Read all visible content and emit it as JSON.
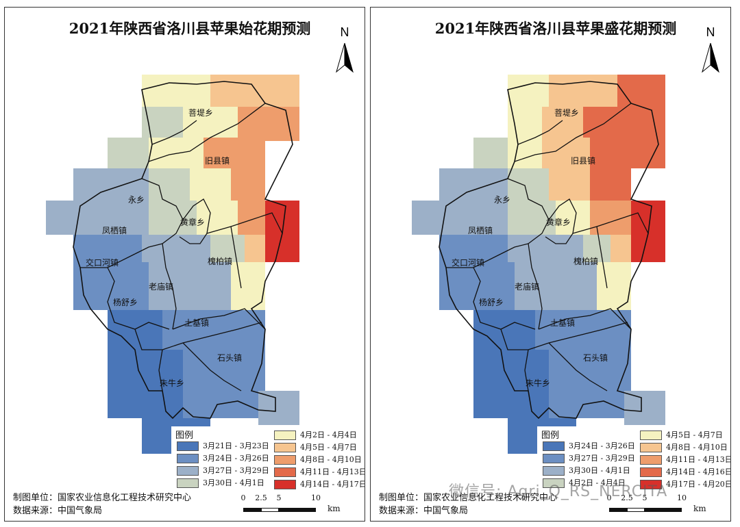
{
  "maps": [
    {
      "title": "2021年陕西省洛川县苹果始花期预测",
      "legend_title": "图例",
      "legend_items": [
        {
          "label": "3月21日 - 3月23日",
          "color": "#4a76b8"
        },
        {
          "label": "3月24日 - 3月26日",
          "color": "#6c8fc2"
        },
        {
          "label": "3月27日 - 3月29日",
          "color": "#9cb0c8"
        },
        {
          "label": "3月30日 - 4月1日",
          "color": "#c9d3c0"
        },
        {
          "label": "4月2日 - 4月4日",
          "color": "#f5f2c0"
        },
        {
          "label": "4月5日 - 4月7日",
          "color": "#f6c590"
        },
        {
          "label": "4月8日 - 4月10日",
          "color": "#ee9d6c"
        },
        {
          "label": "4月11日 - 4月13日",
          "color": "#e36a4a"
        },
        {
          "label": "4月14日 - 4月17日",
          "color": "#d7302a"
        }
      ],
      "credits_org": "制图单位：国家农业信息化工程技术研究中心",
      "credits_source": "数据来源：中国气象局",
      "scale_ticks": [
        "0",
        "2.5",
        "5",
        "10"
      ],
      "scale_unit": "km",
      "north": "N"
    },
    {
      "title": "2021年陕西省洛川县苹果盛花期预测",
      "legend_title": "图例",
      "legend_items": [
        {
          "label": "3月24日 - 3月26日",
          "color": "#4a76b8"
        },
        {
          "label": "3月27日 - 3月29日",
          "color": "#6c8fc2"
        },
        {
          "label": "3月30日 - 4月1日",
          "color": "#9cb0c8"
        },
        {
          "label": "4月2日 - 4月4日",
          "color": "#c9d3c0"
        },
        {
          "label": "4月5日 - 4月7日",
          "color": "#f5f2c0"
        },
        {
          "label": "4月8日 - 4月10日",
          "color": "#f6c590"
        },
        {
          "label": "4月11日 - 4月13日",
          "color": "#ee9d6c"
        },
        {
          "label": "4月14日 - 4月16日",
          "color": "#e36a4a"
        },
        {
          "label": "4月17日 - 4月20日",
          "color": "#d7302a"
        }
      ],
      "credits_org": "制图单位：国家农业信息化工程技术研究中心",
      "credits_source": "数据来源：中国气象局",
      "scale_ticks": [
        "0",
        "2.5",
        "5",
        "10"
      ],
      "scale_unit": "km",
      "north": "N"
    }
  ],
  "townships": [
    "菩堤乡",
    "旧县镇",
    "永乡",
    "黄章乡",
    "凤栖镇",
    "交口河镇",
    "槐柏镇",
    "老庙镇",
    "杨舒乡",
    "土基镇",
    "石头镇",
    "朱牛乡"
  ],
  "watermark": "微信号: Agri_Q_RS_NERCITA"
}
